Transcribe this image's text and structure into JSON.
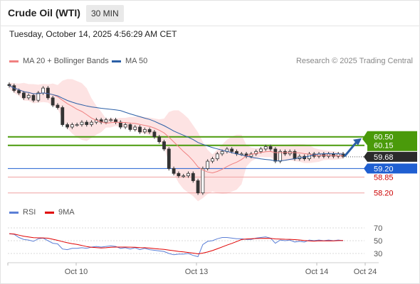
{
  "header": {
    "title": "Crude Oil (WTI)",
    "interval": "30 MIN",
    "timestamp": "Tuesday, October 14, 2025 4:56:29 AM CET"
  },
  "legend": {
    "ma20": "MA 20 + Bollinger Bands",
    "ma50": "MA 50",
    "copyright": "Research © 2025 Trading Central",
    "rsi": "RSI",
    "rsi_ma": "9MA"
  },
  "colors": {
    "ma20": "#f08080",
    "ma50": "#2b5fa6",
    "resistance": "#4a9a0a",
    "support_blue": "#1f5fd1",
    "support_red": "#f0a0a0",
    "current": "#2b2b2b",
    "rsi": "#5b7fd6",
    "rsi_ma": "#e00000"
  },
  "chart_data": {
    "type": "candlestick",
    "price_levels": [
      {
        "label": "60.50",
        "value": 60.5,
        "kind": "resistance"
      },
      {
        "label": "60.15",
        "value": 60.15,
        "kind": "resistance"
      },
      {
        "label": "59.68",
        "value": 59.68,
        "kind": "current"
      },
      {
        "label": "59.20",
        "value": 59.2,
        "kind": "support_blue"
      },
      {
        "label": "58.85",
        "value": 58.85,
        "kind": "support_red"
      },
      {
        "label": "58.20",
        "value": 58.2,
        "kind": "support_red"
      }
    ],
    "x_ticks": [
      "Oct 10",
      "Oct 13",
      "Oct 14",
      "Oct 24"
    ],
    "rsi_ticks": [
      70,
      50,
      30
    ],
    "rsi_range": [
      20,
      80
    ],
    "price_range": [
      57.9,
      63.2
    ],
    "closes": [
      62.6,
      62.4,
      62.3,
      62.1,
      62.2,
      62.0,
      62.3,
      62.5,
      62.1,
      61.8,
      61.7,
      61.0,
      60.9,
      61.0,
      61.0,
      61.1,
      61.0,
      61.1,
      61.2,
      61.1,
      61.2,
      61.2,
      61.1,
      60.9,
      61.0,
      60.8,
      60.9,
      60.7,
      60.8,
      60.7,
      60.5,
      60.3,
      60.0,
      59.2,
      59.0,
      58.9,
      58.9,
      59.0,
      58.7,
      58.2,
      59.2,
      59.5,
      59.6,
      59.8,
      59.9,
      60.0,
      59.9,
      59.8,
      59.8,
      59.7,
      59.8,
      59.9,
      60.0,
      60.1,
      60.0,
      59.5,
      59.9,
      59.8,
      59.9,
      59.6,
      59.7,
      59.6,
      59.8,
      59.7,
      59.8,
      59.7,
      59.8,
      59.7,
      59.8,
      59.7
    ],
    "rsi_values": [
      61,
      60,
      55,
      52,
      51,
      49,
      53,
      54,
      50,
      46,
      45,
      37,
      36,
      38,
      38,
      39,
      38,
      40,
      41,
      40,
      41,
      42,
      41,
      38,
      39,
      37,
      39,
      36,
      38,
      36,
      35,
      34,
      33,
      30,
      28,
      29,
      29,
      30,
      27,
      25,
      44,
      49,
      50,
      53,
      55,
      55,
      54,
      53,
      53,
      52,
      52,
      54,
      55,
      56,
      54,
      46,
      51,
      50,
      51,
      48,
      49,
      48,
      51,
      50,
      51,
      50,
      51,
      50,
      51,
      50
    ],
    "forecast_target": 60.5
  }
}
